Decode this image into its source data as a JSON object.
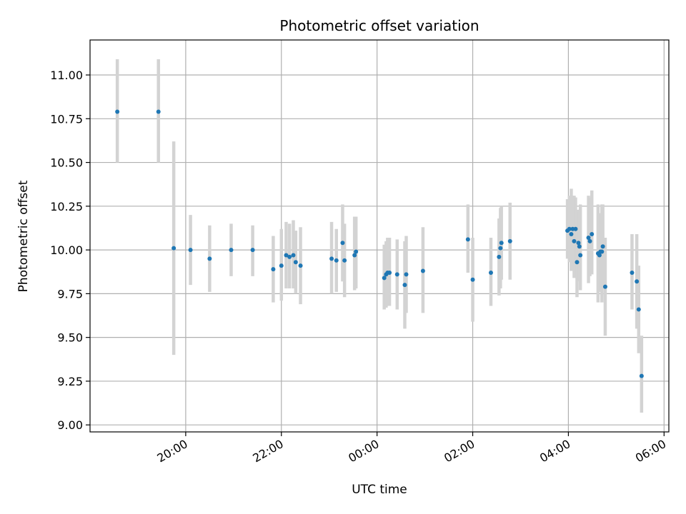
{
  "chart_data": {
    "type": "scatter",
    "title": "Photometric offset variation",
    "xlabel": "UTC time",
    "ylabel": "Photometric offset",
    "x_unit": "hours since 00:00 UTC (wraps past midnight)",
    "xlim": [
      -6.0,
      6.1
    ],
    "ylim": [
      8.96,
      11.2
    ],
    "x_ticks": [
      {
        "value": -4,
        "label": "20:00"
      },
      {
        "value": -2,
        "label": "22:00"
      },
      {
        "value": 0,
        "label": "00:00"
      },
      {
        "value": 2,
        "label": "02:00"
      },
      {
        "value": 4,
        "label": "04:00"
      },
      {
        "value": 6,
        "label": "06:00"
      }
    ],
    "y_ticks": [
      {
        "value": 9.0,
        "label": "9.00"
      },
      {
        "value": 9.25,
        "label": "9.25"
      },
      {
        "value": 9.5,
        "label": "9.50"
      },
      {
        "value": 9.75,
        "label": "9.75"
      },
      {
        "value": 10.0,
        "label": "10.00"
      },
      {
        "value": 10.25,
        "label": "10.25"
      },
      {
        "value": 10.5,
        "label": "10.50"
      },
      {
        "value": 10.75,
        "label": "10.75"
      },
      {
        "value": 11.0,
        "label": "11.00"
      }
    ],
    "grid": true,
    "point_color": "#1f77b4",
    "errorbar_color": "#d3d3d3",
    "points": [
      {
        "x": -5.43,
        "y": 10.79,
        "lo": 10.5,
        "hi": 11.09
      },
      {
        "x": -4.57,
        "y": 10.79,
        "lo": 10.5,
        "hi": 11.09
      },
      {
        "x": -4.25,
        "y": 10.01,
        "lo": 9.4,
        "hi": 10.62
      },
      {
        "x": -3.9,
        "y": 10.0,
        "lo": 9.8,
        "hi": 10.2
      },
      {
        "x": -3.5,
        "y": 9.95,
        "lo": 9.76,
        "hi": 10.14
      },
      {
        "x": -3.05,
        "y": 10.0,
        "lo": 9.85,
        "hi": 10.15
      },
      {
        "x": -2.6,
        "y": 10.0,
        "lo": 9.85,
        "hi": 10.14
      },
      {
        "x": -2.17,
        "y": 9.89,
        "lo": 9.7,
        "hi": 10.08
      },
      {
        "x": -2.0,
        "y": 9.91,
        "lo": 9.71,
        "hi": 10.12
      },
      {
        "x": -1.9,
        "y": 9.97,
        "lo": 9.78,
        "hi": 10.16
      },
      {
        "x": -1.83,
        "y": 9.96,
        "lo": 9.78,
        "hi": 10.15
      },
      {
        "x": -1.75,
        "y": 9.97,
        "lo": 9.78,
        "hi": 10.17
      },
      {
        "x": -1.7,
        "y": 9.93,
        "lo": 9.75,
        "hi": 10.11
      },
      {
        "x": -1.6,
        "y": 9.91,
        "lo": 9.69,
        "hi": 10.13
      },
      {
        "x": -0.95,
        "y": 9.95,
        "lo": 9.75,
        "hi": 10.16
      },
      {
        "x": -0.85,
        "y": 9.94,
        "lo": 9.76,
        "hi": 10.12
      },
      {
        "x": -0.72,
        "y": 10.04,
        "lo": 9.82,
        "hi": 10.26
      },
      {
        "x": -0.68,
        "y": 9.94,
        "lo": 9.73,
        "hi": 10.15
      },
      {
        "x": -0.47,
        "y": 9.97,
        "lo": 9.77,
        "hi": 10.19
      },
      {
        "x": -0.44,
        "y": 9.99,
        "lo": 9.78,
        "hi": 10.19
      },
      {
        "x": 0.15,
        "y": 9.84,
        "lo": 9.66,
        "hi": 10.03
      },
      {
        "x": 0.19,
        "y": 9.86,
        "lo": 9.67,
        "hi": 10.05
      },
      {
        "x": 0.22,
        "y": 9.87,
        "lo": 9.68,
        "hi": 10.07
      },
      {
        "x": 0.26,
        "y": 9.87,
        "lo": 9.68,
        "hi": 10.07
      },
      {
        "x": 0.42,
        "y": 9.86,
        "lo": 9.66,
        "hi": 10.06
      },
      {
        "x": 0.58,
        "y": 9.8,
        "lo": 9.55,
        "hi": 10.05
      },
      {
        "x": 0.61,
        "y": 9.86,
        "lo": 9.64,
        "hi": 10.08
      },
      {
        "x": 0.96,
        "y": 9.88,
        "lo": 9.64,
        "hi": 10.13
      },
      {
        "x": 1.9,
        "y": 10.06,
        "lo": 9.87,
        "hi": 10.26
      },
      {
        "x": 2.0,
        "y": 9.83,
        "lo": 9.59,
        "hi": 10.07
      },
      {
        "x": 2.38,
        "y": 9.87,
        "lo": 9.68,
        "hi": 10.07
      },
      {
        "x": 2.55,
        "y": 9.96,
        "lo": 9.74,
        "hi": 10.18
      },
      {
        "x": 2.58,
        "y": 10.01,
        "lo": 9.78,
        "hi": 10.24
      },
      {
        "x": 2.6,
        "y": 10.04,
        "lo": 9.83,
        "hi": 10.25
      },
      {
        "x": 2.78,
        "y": 10.05,
        "lo": 9.83,
        "hi": 10.27
      },
      {
        "x": 3.98,
        "y": 10.11,
        "lo": 9.95,
        "hi": 10.29
      },
      {
        "x": 4.02,
        "y": 10.12,
        "lo": 9.93,
        "hi": 10.31
      },
      {
        "x": 4.06,
        "y": 10.09,
        "lo": 9.88,
        "hi": 10.35
      },
      {
        "x": 4.09,
        "y": 10.12,
        "lo": 9.93,
        "hi": 10.31
      },
      {
        "x": 4.12,
        "y": 10.05,
        "lo": 9.84,
        "hi": 10.31
      },
      {
        "x": 4.15,
        "y": 10.12,
        "lo": 9.93,
        "hi": 10.3
      },
      {
        "x": 4.18,
        "y": 9.93,
        "lo": 9.73,
        "hi": 10.14
      },
      {
        "x": 4.21,
        "y": 10.04,
        "lo": 9.86,
        "hi": 10.23
      },
      {
        "x": 4.23,
        "y": 10.02,
        "lo": 9.82,
        "hi": 10.22
      },
      {
        "x": 4.25,
        "y": 9.97,
        "lo": 9.77,
        "hi": 10.26
      },
      {
        "x": 4.42,
        "y": 10.07,
        "lo": 9.81,
        "hi": 10.31
      },
      {
        "x": 4.45,
        "y": 10.05,
        "lo": 9.85,
        "hi": 10.3
      },
      {
        "x": 4.49,
        "y": 10.09,
        "lo": 9.86,
        "hi": 10.34
      },
      {
        "x": 4.62,
        "y": 9.98,
        "lo": 9.7,
        "hi": 10.26
      },
      {
        "x": 4.65,
        "y": 9.97,
        "lo": 9.76,
        "hi": 10.18
      },
      {
        "x": 4.67,
        "y": 9.99,
        "lo": 9.77,
        "hi": 10.21
      },
      {
        "x": 4.7,
        "y": 9.99,
        "lo": 9.7,
        "hi": 10.26
      },
      {
        "x": 4.72,
        "y": 10.02,
        "lo": 9.78,
        "hi": 10.26
      },
      {
        "x": 4.77,
        "y": 9.79,
        "lo": 9.51,
        "hi": 10.07
      },
      {
        "x": 5.33,
        "y": 9.87,
        "lo": 9.66,
        "hi": 10.09
      },
      {
        "x": 5.43,
        "y": 9.82,
        "lo": 9.55,
        "hi": 10.09
      },
      {
        "x": 5.47,
        "y": 9.66,
        "lo": 9.41,
        "hi": 9.91
      },
      {
        "x": 5.53,
        "y": 9.28,
        "lo": 9.07,
        "hi": 9.51
      }
    ]
  }
}
